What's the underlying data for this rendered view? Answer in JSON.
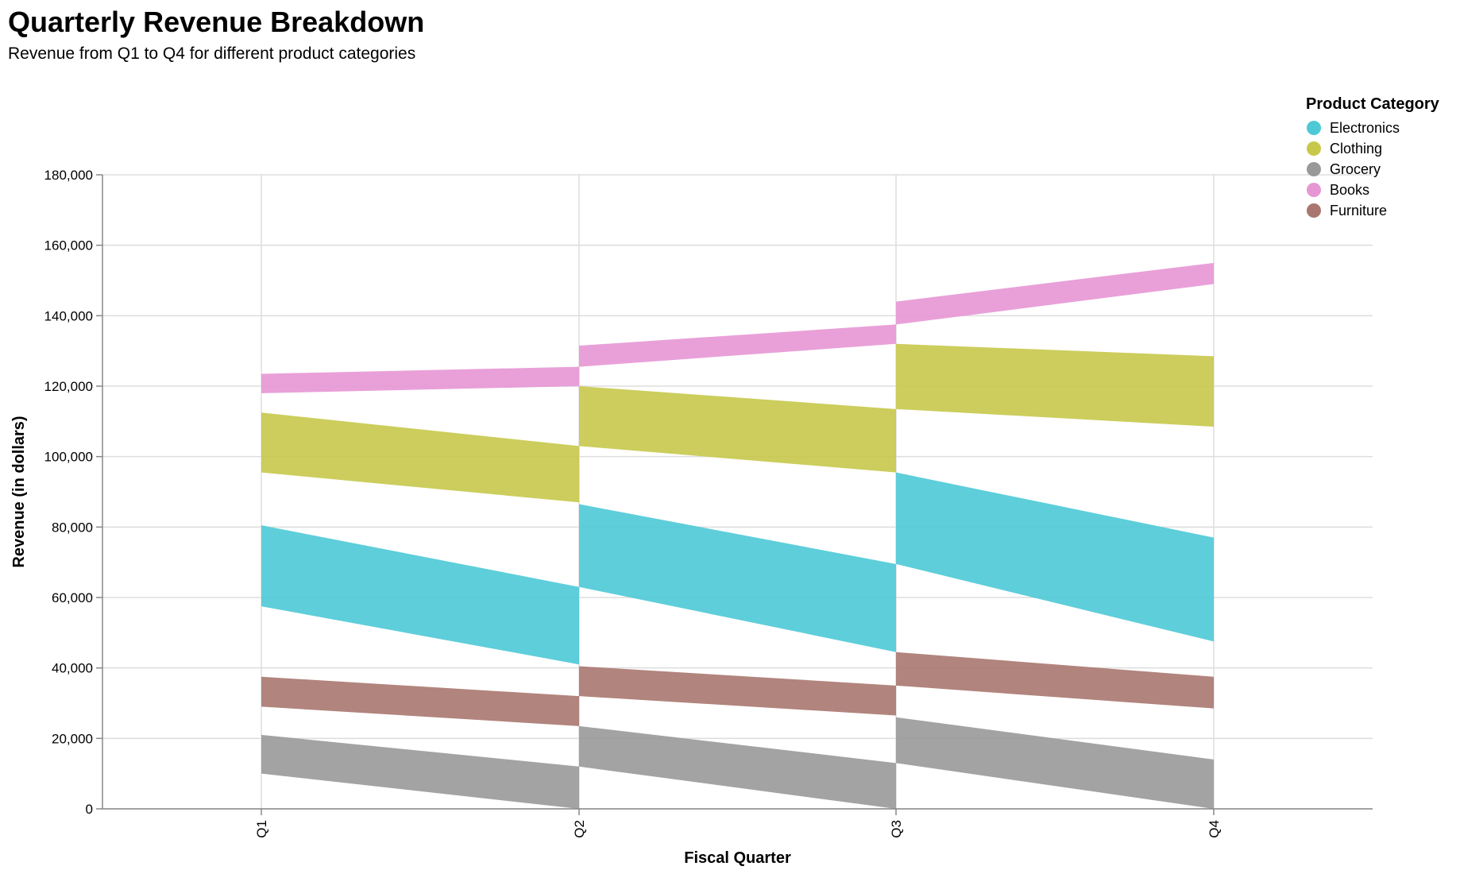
{
  "chart_data": {
    "type": "area",
    "title": "Quarterly Revenue Breakdown",
    "subtitle": "Revenue from Q1 to Q4 for different product categories",
    "xlabel": "Fiscal Quarter",
    "ylabel": "Revenue (in dollars)",
    "categories": [
      "Q1",
      "Q2",
      "Q3",
      "Q4"
    ],
    "ylim": [
      0,
      180000
    ],
    "yticks": [
      0,
      20000,
      40000,
      60000,
      80000,
      100000,
      120000,
      140000,
      160000,
      180000
    ],
    "ytick_labels": [
      "0",
      "20,000",
      "40,000",
      "60,000",
      "80,000",
      "100,000",
      "120,000",
      "140,000",
      "160,000",
      "180,000"
    ],
    "grid": true,
    "legend": {
      "title": "Product Category",
      "position": "top-right"
    },
    "series": [
      {
        "name": "Electronics",
        "color": "#4dc9d6",
        "segments": [
          {
            "from": "Q1",
            "to": "Q2",
            "start": [
              57500,
              80500
            ],
            "end": [
              41000,
              63000
            ]
          },
          {
            "from": "Q2",
            "to": "Q3",
            "start": [
              63000,
              86500
            ],
            "end": [
              44500,
              69500
            ]
          },
          {
            "from": "Q3",
            "to": "Q4",
            "start": [
              69500,
              95500
            ],
            "end": [
              47500,
              77000
            ]
          }
        ]
      },
      {
        "name": "Clothing",
        "color": "#c7c84a",
        "segments": [
          {
            "from": "Q1",
            "to": "Q2",
            "start": [
              95500,
              112500
            ],
            "end": [
              87000,
              103000
            ]
          },
          {
            "from": "Q2",
            "to": "Q3",
            "start": [
              103000,
              120000
            ],
            "end": [
              95500,
              113500
            ]
          },
          {
            "from": "Q3",
            "to": "Q4",
            "start": [
              113500,
              132000
            ],
            "end": [
              108500,
              128500
            ]
          }
        ]
      },
      {
        "name": "Grocery",
        "color": "#999999",
        "segments": [
          {
            "from": "Q1",
            "to": "Q2",
            "start": [
              10000,
              21000
            ],
            "end": [
              0,
              12000
            ]
          },
          {
            "from": "Q2",
            "to": "Q3",
            "start": [
              12000,
              23500
            ],
            "end": [
              0,
              13000
            ]
          },
          {
            "from": "Q3",
            "to": "Q4",
            "start": [
              13000,
              26000
            ],
            "end": [
              0,
              14000
            ]
          }
        ]
      },
      {
        "name": "Books",
        "color": "#e796d4",
        "segments": [
          {
            "from": "Q1",
            "to": "Q2",
            "start": [
              118000,
              123500
            ],
            "end": [
              120000,
              125500
            ]
          },
          {
            "from": "Q2",
            "to": "Q3",
            "start": [
              125500,
              131500
            ],
            "end": [
              132000,
              137500
            ]
          },
          {
            "from": "Q3",
            "to": "Q4",
            "start": [
              137500,
              144000
            ],
            "end": [
              149000,
              155000
            ]
          }
        ]
      },
      {
        "name": "Furniture",
        "color": "#a9776f",
        "segments": [
          {
            "from": "Q1",
            "to": "Q2",
            "start": [
              29000,
              37500
            ],
            "end": [
              23500,
              32000
            ]
          },
          {
            "from": "Q2",
            "to": "Q3",
            "start": [
              32000,
              40500
            ],
            "end": [
              26500,
              35000
            ]
          },
          {
            "from": "Q3",
            "to": "Q4",
            "start": [
              35000,
              44500
            ],
            "end": [
              28500,
              37500
            ]
          }
        ]
      }
    ]
  }
}
